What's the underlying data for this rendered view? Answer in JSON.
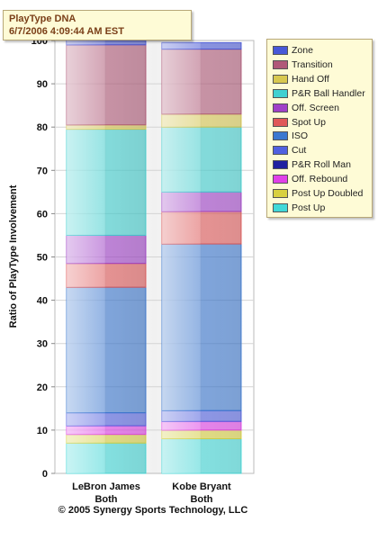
{
  "title_box": {
    "line1": "PlayType DNA",
    "line2": "6/7/2006 4:09:44 AM EST"
  },
  "footer": {
    "copyright": "© 2005 Synergy Sports Technology, LLC"
  },
  "chart_data": {
    "type": "bar",
    "stacked": true,
    "ylabel": "Ratio of PlayType Involvement",
    "ylim": [
      0,
      100
    ],
    "yticks": [
      0,
      10,
      20,
      30,
      40,
      50,
      60,
      70,
      80,
      90,
      100
    ],
    "grid": true,
    "legend_position": "top-right",
    "categories": [
      {
        "name": "LeBron James",
        "sub": "Both"
      },
      {
        "name": "Kobe Bryant",
        "sub": "Both"
      }
    ],
    "series": [
      {
        "name": "Post Up",
        "color": "#40d8d8",
        "values": [
          7.0,
          8.0
        ]
      },
      {
        "name": "Post Up Doubled",
        "color": "#d8d040",
        "values": [
          2.0,
          2.0
        ]
      },
      {
        "name": "Off. Rebound",
        "color": "#e040e8",
        "values": [
          2.0,
          2.0
        ]
      },
      {
        "name": "P&R Roll Man",
        "color": "#2020a0",
        "values": [
          0.0,
          0.0
        ]
      },
      {
        "name": "Cut",
        "color": "#5060e0",
        "values": [
          3.0,
          2.5
        ]
      },
      {
        "name": "ISO",
        "color": "#3a78d0",
        "values": [
          29.0,
          38.5
        ]
      },
      {
        "name": "Spot Up",
        "color": "#e05858",
        "values": [
          5.5,
          7.5
        ]
      },
      {
        "name": "Off. Screen",
        "color": "#a040c8",
        "values": [
          6.5,
          4.5
        ]
      },
      {
        "name": "P&R Ball Handler",
        "color": "#40d0d0",
        "values": [
          24.5,
          15.0
        ]
      },
      {
        "name": "Hand Off",
        "color": "#d8c850",
        "values": [
          1.0,
          3.0
        ]
      },
      {
        "name": "Transition",
        "color": "#b05878",
        "values": [
          18.5,
          15.0
        ]
      },
      {
        "name": "Zone",
        "color": "#4858d8",
        "values": [
          1.0,
          1.5
        ]
      }
    ]
  }
}
